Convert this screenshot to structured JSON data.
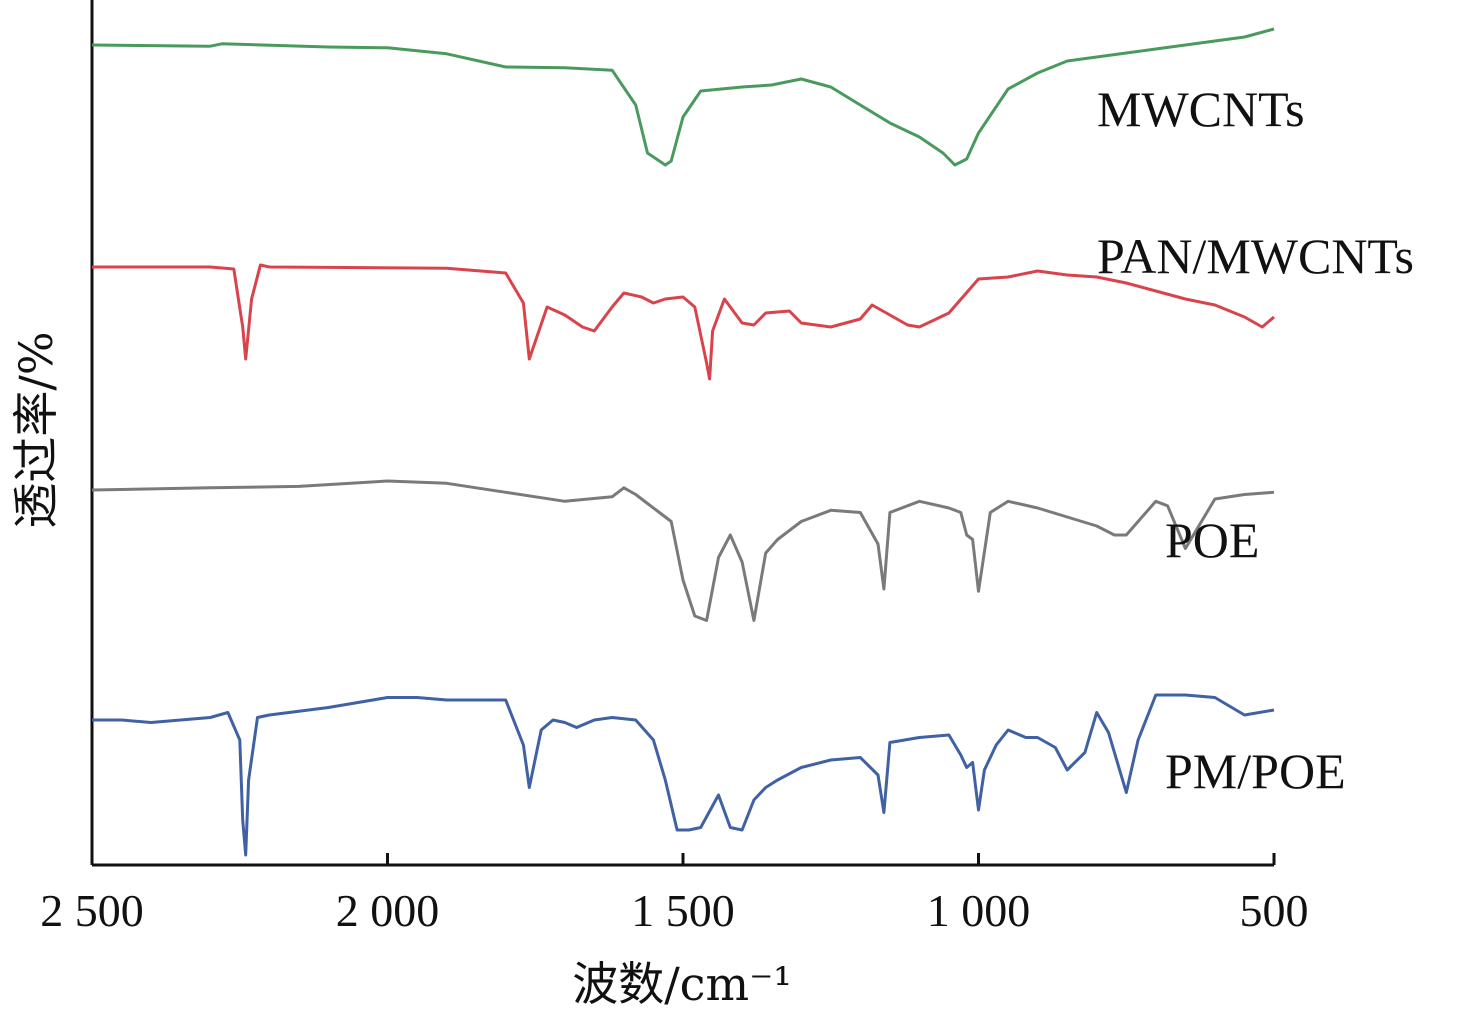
{
  "chart_data": {
    "type": "line",
    "title": "",
    "xlabel": "波数/cm⁻¹",
    "ylabel": "透过率/%",
    "xlim": [
      2500,
      500
    ],
    "x_reversed": true,
    "x_ticks": [
      2500,
      2000,
      1500,
      1000,
      500
    ],
    "x_tick_labels": [
      "2 500",
      "2 000",
      "1 500",
      "1 000",
      "500"
    ],
    "y_ticks_shown": false,
    "grid": false,
    "legend": "inline labels at right end of each trace",
    "series": [
      {
        "name": "MWCNTs",
        "color": "#4a9a5e",
        "x": [
          2500,
          2300,
          2280,
          2100,
          2000,
          1900,
          1800,
          1700,
          1620,
          1580,
          1560,
          1530,
          1520,
          1500,
          1470,
          1400,
          1350,
          1300,
          1250,
          1200,
          1150,
          1100,
          1060,
          1040,
          1020,
          1000,
          950,
          900,
          850,
          800,
          750,
          700,
          650,
          600,
          550,
          500
        ],
        "y": [
          100,
          99.7,
          100.3,
          99.5,
          99.3,
          97.8,
          94.5,
          94.3,
          93.7,
          85.0,
          73.0,
          70.0,
          71.0,
          82.0,
          88.5,
          89.5,
          90.0,
          91.5,
          89.5,
          85.0,
          80.5,
          77.0,
          73.0,
          70.0,
          71.5,
          78.0,
          89.0,
          93.0,
          96.0,
          97.0,
          98.0,
          99.0,
          100.0,
          101.0,
          102.0,
          104.0
        ]
      },
      {
        "name": "PAN/MWCNTs",
        "color": "#d9434c",
        "x": [
          2500,
          2300,
          2260,
          2245,
          2240,
          2230,
          2215,
          2200,
          2100,
          1900,
          1800,
          1770,
          1760,
          1730,
          1700,
          1670,
          1650,
          1620,
          1600,
          1570,
          1550,
          1530,
          1500,
          1480,
          1460,
          1455,
          1450,
          1430,
          1400,
          1380,
          1360,
          1320,
          1300,
          1250,
          1200,
          1180,
          1150,
          1120,
          1100,
          1050,
          1000,
          950,
          900,
          850,
          800,
          750,
          700,
          650,
          600,
          550,
          520,
          500
        ],
        "y": [
          100,
          100,
          99.5,
          85.0,
          77.0,
          92.0,
          100.5,
          100,
          99.9,
          99.7,
          98.5,
          91.0,
          77.0,
          90.0,
          88.0,
          85.0,
          84.0,
          90.0,
          93.5,
          92.5,
          91.0,
          92.0,
          92.5,
          90.0,
          76.0,
          72.0,
          84.0,
          92.0,
          86.0,
          85.5,
          88.5,
          89.0,
          86.0,
          85.0,
          87.0,
          90.5,
          88.0,
          85.5,
          85.0,
          88.5,
          97.0,
          97.5,
          99.0,
          98.0,
          97.5,
          96.0,
          94.0,
          92.0,
          90.5,
          87.5,
          85.0,
          87.5
        ]
      },
      {
        "name": "POE",
        "color": "#7a7a7a",
        "x": [
          2500,
          2300,
          2150,
          2000,
          1900,
          1800,
          1700,
          1620,
          1600,
          1580,
          1560,
          1540,
          1520,
          1500,
          1480,
          1460,
          1440,
          1420,
          1400,
          1380,
          1360,
          1340,
          1300,
          1250,
          1200,
          1170,
          1160,
          1150,
          1100,
          1050,
          1030,
          1020,
          1010,
          1000,
          980,
          950,
          900,
          850,
          800,
          770,
          750,
          730,
          700,
          680,
          650,
          600,
          550,
          500
        ],
        "y": [
          100,
          100.5,
          100.8,
          102.0,
          101.5,
          99.5,
          97.5,
          98.5,
          100.5,
          99.0,
          97.0,
          95.0,
          93.0,
          80.0,
          72.0,
          71.0,
          85.0,
          90.0,
          84.0,
          71.0,
          86.0,
          89.0,
          93.0,
          95.5,
          95.0,
          88.0,
          78.0,
          95.0,
          97.5,
          96.0,
          95.0,
          90.0,
          89.0,
          77.5,
          95.0,
          97.5,
          96.0,
          94.0,
          92.0,
          90.0,
          90.0,
          93.0,
          97.5,
          96.5,
          87.0,
          98.0,
          99.0,
          99.5
        ]
      },
      {
        "name": "PM/POE",
        "color": "#4061a4",
        "x": [
          2500,
          2450,
          2400,
          2350,
          2300,
          2270,
          2250,
          2245,
          2240,
          2235,
          2220,
          2200,
          2100,
          2000,
          1950,
          1900,
          1800,
          1770,
          1760,
          1740,
          1720,
          1700,
          1680,
          1650,
          1620,
          1580,
          1550,
          1530,
          1510,
          1490,
          1470,
          1440,
          1420,
          1400,
          1380,
          1360,
          1340,
          1300,
          1250,
          1200,
          1170,
          1160,
          1150,
          1100,
          1050,
          1030,
          1020,
          1010,
          1000,
          990,
          970,
          950,
          920,
          900,
          870,
          850,
          820,
          800,
          780,
          750,
          730,
          700,
          650,
          600,
          550,
          500
        ],
        "y": [
          100,
          100,
          99.5,
          100,
          100.5,
          101.5,
          96.0,
          80.0,
          73.0,
          88.0,
          100.5,
          101.0,
          102.5,
          104.5,
          104.5,
          104.0,
          104.0,
          95.0,
          86.5,
          98.0,
          100.0,
          99.5,
          98.5,
          100.0,
          100.5,
          100.0,
          96.0,
          88.0,
          78.0,
          78.0,
          78.5,
          85.0,
          78.5,
          78.0,
          84.0,
          86.5,
          88.0,
          90.5,
          92.0,
          92.5,
          89.0,
          81.5,
          95.5,
          96.5,
          97.0,
          93.0,
          90.5,
          91.5,
          82.0,
          90.0,
          95.0,
          98.0,
          96.5,
          96.5,
          94.5,
          90.0,
          93.5,
          101.5,
          97.5,
          85.5,
          96.0,
          105.0,
          105.0,
          104.5,
          101.0,
          102.0
        ]
      }
    ]
  }
}
